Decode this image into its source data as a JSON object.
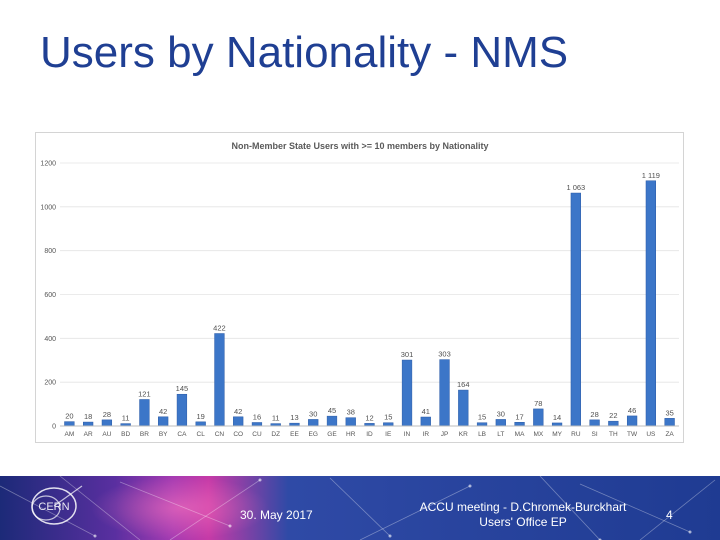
{
  "slide": {
    "title": "Users by Nationality - NMS"
  },
  "footer": {
    "date": "30. May 2017",
    "meeting_line1": "ACCU meeting - D.Chromek-Burckhart",
    "meeting_line2": "Users' Office EP",
    "page_number": "4",
    "logo_text": "CERN"
  },
  "colors": {
    "title": "#1f3f93",
    "bar": "#3c76c8",
    "bar_edge": "#2a5aa6"
  },
  "chart_data": {
    "type": "bar",
    "title": "Non-Member State Users with >= 10 members  by Nationality",
    "xlabel": "",
    "ylabel": "",
    "ylim": [
      0,
      1200
    ],
    "yticks": [
      "0",
      "200",
      "400",
      "600",
      "800",
      "1000",
      "1200"
    ],
    "grid": true,
    "legend": "none",
    "categories": [
      "AM",
      "AR",
      "AU",
      "BD",
      "BR",
      "BY",
      "CA",
      "CL",
      "CN",
      "CO",
      "CU",
      "DZ",
      "EE",
      "EG",
      "GE",
      "HR",
      "ID",
      "IE",
      "IN",
      "IR",
      "JP",
      "KR",
      "LB",
      "LT",
      "MA",
      "MX",
      "MY",
      "RU",
      "SI",
      "TH",
      "TW",
      "US",
      "ZA"
    ],
    "values": [
      20,
      18,
      28,
      11,
      121,
      42,
      145,
      19,
      422,
      42,
      16,
      11,
      13,
      30,
      45,
      38,
      12,
      15,
      301,
      41,
      303,
      164,
      15,
      30,
      17,
      78,
      14,
      1063,
      28,
      22,
      46,
      1119,
      35
    ],
    "data_labels": [
      "20",
      "18",
      "28",
      "11",
      "121",
      "42",
      "145",
      "19",
      "422",
      "42",
      "16",
      "11",
      "13",
      "30",
      "45",
      "38",
      "12",
      "15",
      "301",
      "41",
      "303",
      "164",
      "15",
      "30",
      "17",
      "78",
      "14",
      "1 063",
      "28",
      "22",
      "46",
      "1 119",
      "35"
    ]
  }
}
